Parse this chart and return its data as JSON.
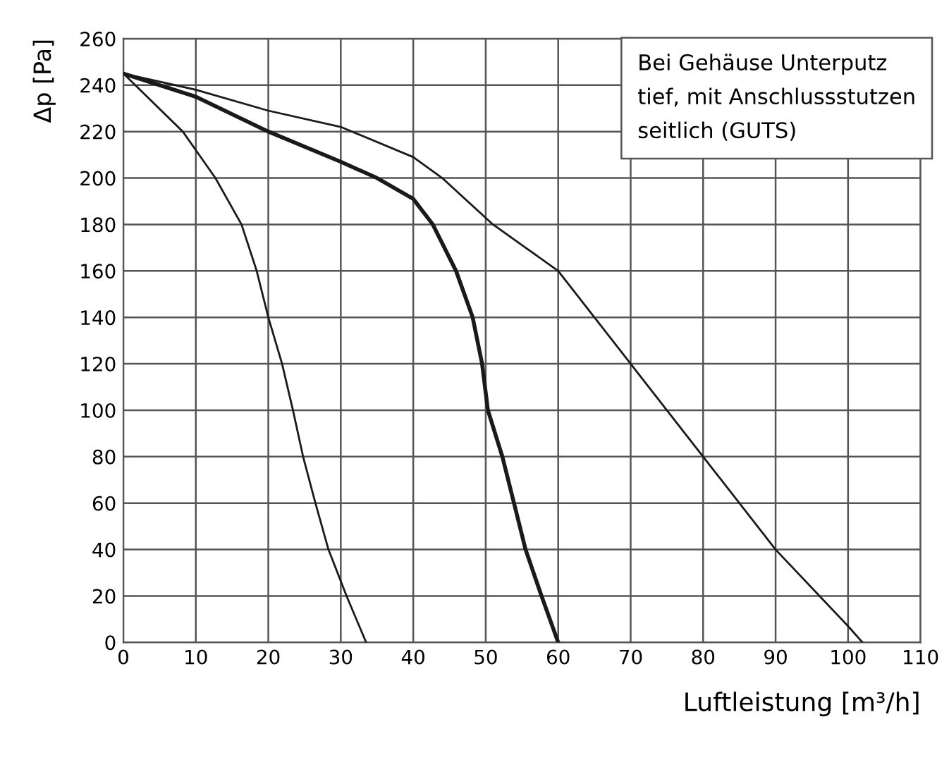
{
  "chart_data": {
    "type": "line",
    "xlabel": "Luftleistung [m³/h]",
    "ylabel": "Δp [Pa]",
    "annotations": [
      "Bei Gehäuse Unterputz\ntief, mit Anschlussstutzen\nseitlich (GUTS)"
    ],
    "xlim": [
      0,
      110
    ],
    "ylim": [
      0,
      260
    ],
    "xticks": [
      0,
      10,
      20,
      30,
      40,
      50,
      60,
      70,
      80,
      90,
      100,
      110
    ],
    "yticks": [
      0,
      20,
      40,
      60,
      80,
      100,
      120,
      140,
      160,
      180,
      200,
      220,
      240,
      260
    ],
    "grid": true,
    "marker": "none",
    "line_style": "solid",
    "series": [
      {
        "color": "#1a1a1a",
        "x": [
          0,
          8.2,
          10,
          12.7,
          16.3,
          18.4,
          20,
          21.9,
          23.4,
          24.8,
          26.5,
          28.3,
          30.8,
          33.5
        ],
        "values": [
          245,
          220,
          212,
          200,
          180,
          160,
          140,
          120,
          100,
          80,
          60,
          40,
          20,
          0
        ]
      },
      {
        "color": "#1a1a1a",
        "x": [
          0,
          10,
          20,
          30,
          35,
          40,
          42.7,
          45.9,
          48.2,
          49.5,
          50.3,
          52.3,
          53.9,
          55.5,
          57.7,
          60
        ],
        "values": [
          245,
          235,
          220,
          207,
          200,
          191,
          180,
          160,
          140,
          120,
          100,
          80,
          60,
          40,
          20,
          0
        ]
      },
      {
        "color": "#1a1a1a",
        "x": [
          0,
          10,
          20,
          30,
          40,
          44,
          51,
          55.5,
          60,
          70,
          80,
          90,
          100,
          102
        ],
        "values": [
          245,
          238,
          229,
          222,
          209,
          200,
          180,
          170,
          160,
          120,
          80,
          40,
          7,
          0
        ]
      }
    ]
  }
}
